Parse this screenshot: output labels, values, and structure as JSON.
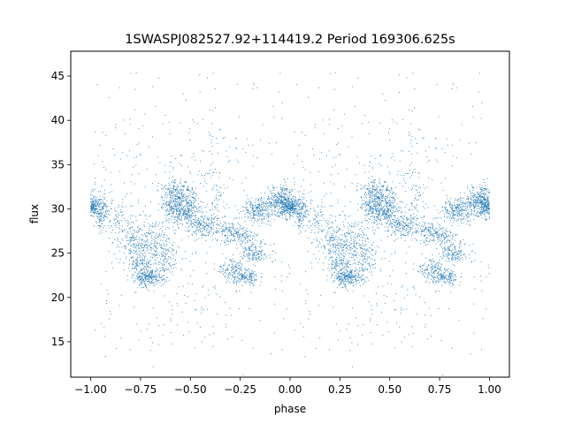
{
  "chart_data": {
    "type": "scatter",
    "title": "1SWASPJ082527.92+114419.2 Period 169306.625s",
    "xlabel": "phase",
    "ylabel": "flux",
    "xlim": [
      -1.1,
      1.1
    ],
    "ylim": [
      11,
      47.8
    ],
    "xticks": [
      -1.0,
      -0.75,
      -0.5,
      -0.25,
      0.0,
      0.25,
      0.5,
      0.75,
      1.0
    ],
    "xtick_labels": [
      "−1.00",
      "−0.75",
      "−0.50",
      "−0.25",
      "0.00",
      "0.25",
      "0.50",
      "0.75",
      "1.00"
    ],
    "yticks": [
      15,
      20,
      25,
      30,
      35,
      40,
      45
    ],
    "ytick_labels": [
      "15",
      "20",
      "25",
      "30",
      "35",
      "40",
      "45"
    ],
    "grid": false,
    "point_color": "#1f77b4",
    "clusters": [
      {
        "x": 0.0,
        "y": 30.2,
        "sx": 0.025,
        "sy": 0.5,
        "n": 260
      },
      {
        "x": 0.06,
        "y": 29.6,
        "sx": 0.02,
        "sy": 1.0,
        "n": 130
      },
      {
        "x": 0.15,
        "y": 28.2,
        "sx": 0.03,
        "sy": 1.5,
        "n": 90
      },
      {
        "x": 0.21,
        "y": 26.0,
        "sx": 0.03,
        "sy": 1.4,
        "n": 130
      },
      {
        "x": 0.26,
        "y": 23.5,
        "sx": 0.03,
        "sy": 1.0,
        "n": 150
      },
      {
        "x": 0.3,
        "y": 22.2,
        "sx": 0.04,
        "sy": 0.5,
        "n": 200
      },
      {
        "x": 0.3,
        "y": 26.5,
        "sx": 0.05,
        "sy": 1.3,
        "n": 170
      },
      {
        "x": 0.37,
        "y": 24.5,
        "sx": 0.04,
        "sy": 1.2,
        "n": 140
      },
      {
        "x": 0.4,
        "y": 30.0,
        "sx": 0.03,
        "sy": 0.8,
        "n": 120
      },
      {
        "x": 0.43,
        "y": 31.7,
        "sx": 0.04,
        "sy": 0.7,
        "n": 220
      },
      {
        "x": 0.47,
        "y": 29.7,
        "sx": 0.04,
        "sy": 0.8,
        "n": 200
      },
      {
        "x": 0.51,
        "y": 30.3,
        "sx": 0.02,
        "sy": 1.5,
        "n": 100
      },
      {
        "x": 0.57,
        "y": 28.0,
        "sx": 0.03,
        "sy": 0.6,
        "n": 150
      },
      {
        "x": 0.63,
        "y": 30.5,
        "sx": 0.03,
        "sy": 1.8,
        "n": 70
      },
      {
        "x": 0.69,
        "y": 27.5,
        "sx": 0.03,
        "sy": 0.6,
        "n": 110
      },
      {
        "x": 0.72,
        "y": 23.2,
        "sx": 0.04,
        "sy": 0.6,
        "n": 140
      },
      {
        "x": 0.78,
        "y": 22.2,
        "sx": 0.04,
        "sy": 0.4,
        "n": 130
      },
      {
        "x": 0.76,
        "y": 26.8,
        "sx": 0.04,
        "sy": 0.6,
        "n": 110
      },
      {
        "x": 0.82,
        "y": 25.0,
        "sx": 0.04,
        "sy": 0.6,
        "n": 140
      },
      {
        "x": 0.83,
        "y": 29.8,
        "sx": 0.04,
        "sy": 0.6,
        "n": 200
      },
      {
        "x": 0.92,
        "y": 30.5,
        "sx": 0.04,
        "sy": 0.8,
        "n": 220
      },
      {
        "x": 0.97,
        "y": 31.3,
        "sx": 0.03,
        "sy": 0.9,
        "n": 160
      },
      {
        "x": 0.5,
        "y": 35.0,
        "sx": 0.25,
        "sy": 4.0,
        "n": 180
      },
      {
        "x": 0.5,
        "y": 20.0,
        "sx": 0.3,
        "sy": 3.0,
        "n": 120
      }
    ],
    "outlier_fraction": 0.04,
    "seed": 7
  }
}
